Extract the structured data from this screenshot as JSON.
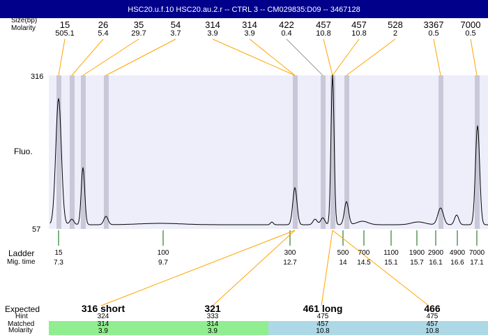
{
  "title": "HSC20.u.f.10  HSC20.au.2.r -- CTRL 3 -- CM029835:D09 -- 3467128",
  "labels": {
    "size": "Size(bp)",
    "molarity": "Molarity",
    "fluo": "Fluo.",
    "ladder": "Ladder",
    "migtime": "Mig. time",
    "expected": "Expected",
    "hint": "Hint",
    "matched": "Matched",
    "molarity2": "Molarity"
  },
  "colors": {
    "plot_bg": "#eeeefb",
    "band": "#c8c8d8",
    "connector": "#ffa500",
    "ladder_tick": "#006400",
    "matched_green": "#90ee90",
    "matched_blue": "#add8e6",
    "title_bg": "#00008b"
  },
  "chart_data": {
    "type": "line",
    "ylabel": "Fluo.",
    "ylim": [
      57,
      316
    ],
    "y_ticks": [
      "316",
      "57"
    ],
    "peaks": [
      {
        "size": "15",
        "molarity": "505.1"
      },
      {
        "size": "26",
        "molarity": "5.4"
      },
      {
        "size": "35",
        "molarity": "29.7"
      },
      {
        "size": "54",
        "molarity": "3.7"
      },
      {
        "size": "314",
        "molarity": "3.9"
      },
      {
        "size": "314",
        "molarity": "3.9"
      },
      {
        "size": "422",
        "molarity": "0.4"
      },
      {
        "size": "457",
        "molarity": "10.8"
      },
      {
        "size": "457",
        "molarity": "10.8"
      },
      {
        "size": "528",
        "molarity": "2"
      },
      {
        "size": "3367",
        "molarity": "0.5"
      },
      {
        "size": "7000",
        "molarity": "0.5"
      }
    ],
    "ladder": [
      {
        "size": "15",
        "time": "7.3"
      },
      {
        "size": "100",
        "time": "9.7"
      },
      {
        "size": "300",
        "time": "12.7"
      },
      {
        "size": "500",
        "time": "14"
      },
      {
        "size": "700",
        "time": "14.5"
      },
      {
        "size": "1100",
        "time": "15.1"
      },
      {
        "size": "1900",
        "time": "15.7"
      },
      {
        "size": "2900",
        "time": "16.1"
      },
      {
        "size": "4900",
        "time": "16.6"
      },
      {
        "size": "7000",
        "time": "17.1"
      }
    ],
    "expected": [
      {
        "name": "316 short",
        "hint": "324",
        "matched": "314",
        "molarity": "3.9"
      },
      {
        "name": "321",
        "hint": "333",
        "matched": "314",
        "molarity": "3.9"
      },
      {
        "name": "461 long",
        "hint": "475",
        "matched": "457",
        "molarity": "10.8"
      },
      {
        "name": "466",
        "hint": "475",
        "matched": "457",
        "molarity": "10.8"
      }
    ]
  }
}
